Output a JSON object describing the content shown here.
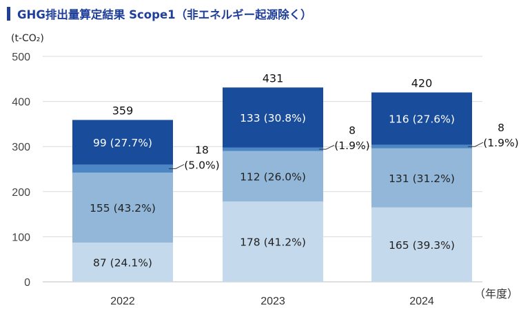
{
  "chart_data": {
    "type": "bar",
    "stacked": true,
    "title": "GHG排出量算定結果 Scope1（非エネルギー起源除く）",
    "ylabel": "(t-CO₂)",
    "xlabel": "（年度）",
    "ylim": [
      0,
      500
    ],
    "yticks": [
      "0",
      "100",
      "200",
      "300",
      "400",
      "500"
    ],
    "grid": true,
    "categories": [
      "2022",
      "2023",
      "2024"
    ],
    "totals": [
      "359",
      "431",
      "420"
    ],
    "series": [
      {
        "color": "#c5d9ec",
        "text_color": "#222222",
        "values": [
          87,
          178,
          165
        ],
        "labels": [
          "87 (24.1%)",
          "178 (41.2%)",
          "165 (39.3%)"
        ]
      },
      {
        "color": "#92b7d8",
        "text_color": "#222222",
        "values": [
          155,
          112,
          131
        ],
        "labels": [
          "155 (43.2%)",
          "112 (26.0%)",
          "131 (31.2%)"
        ]
      },
      {
        "color": "#4d86c4",
        "text_color": "#111111",
        "values": [
          18,
          8,
          8
        ],
        "callouts": [
          [
            "18",
            "(5.0%)"
          ],
          [
            "8",
            "(1.9%)"
          ],
          [
            "8",
            "(1.9%)"
          ]
        ]
      },
      {
        "color": "#1a4c9c",
        "text_color": "#ffffff",
        "values": [
          99,
          133,
          116
        ],
        "labels": [
          "99 (27.7%)",
          "133 (30.8%)",
          "116 (27.6%)"
        ]
      }
    ]
  }
}
